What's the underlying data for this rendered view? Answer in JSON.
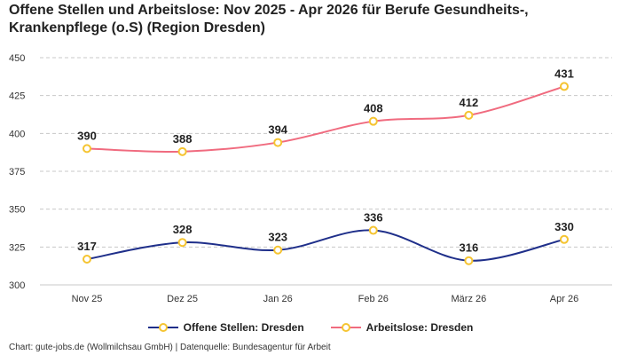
{
  "chart_data": {
    "type": "line",
    "title_line1": "Offene Stellen und Arbeitslose: Nov 2025 - Apr 2026 für Berufe Gesundheits-,",
    "title_line2": "Krankenpflege (o.S) (Region Dresden)",
    "categories": [
      "Nov 25",
      "Dez 25",
      "Jan 26",
      "Feb 26",
      "März 26",
      "Apr 26"
    ],
    "series": [
      {
        "name": "Offene Stellen: Dresden",
        "values": [
          317,
          328,
          323,
          336,
          316,
          330
        ],
        "color": "#1f2f8a"
      },
      {
        "name": "Arbeitslose: Dresden",
        "values": [
          390,
          388,
          394,
          408,
          412,
          431
        ],
        "color": "#f06b7f"
      }
    ],
    "ylim": [
      300,
      450
    ],
    "yticks": [
      300,
      325,
      350,
      375,
      400,
      425,
      450
    ],
    "grid": true,
    "legend": "bottom",
    "marker_color": "#f5c431"
  },
  "source": "Chart: gute-jobs.de (Wollmilchsau GmbH) | Datenquelle: Bundesagentur für Arbeit"
}
